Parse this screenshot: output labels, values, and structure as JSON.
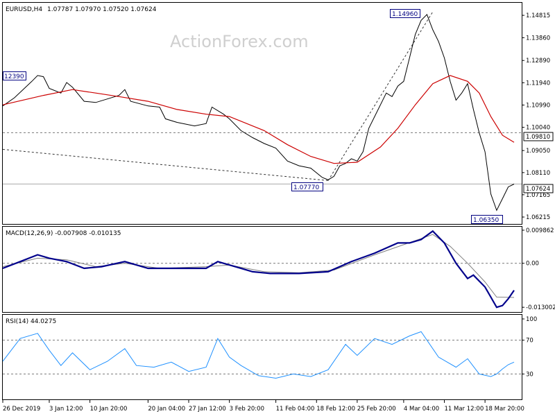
{
  "chart_data": {
    "type": "line",
    "symbol": "EURUSD,H4",
    "ohlc": "1.07787 1.07970 1.07520 1.07624",
    "watermark": "ActionForex.com",
    "colors": {
      "price": "#000000",
      "ma": "#cc0000",
      "macd": "#00008b",
      "signal": "#808080",
      "rsi": "#1e90ff",
      "reference": "#777777",
      "trendline": "#333333"
    },
    "price": {
      "ylim": [
        1.0592,
        1.1535
      ],
      "ticks": [
        "1.14815",
        "1.13860",
        "1.12890",
        "1.11940",
        "1.10990",
        "1.10040",
        "1.09050",
        "1.08110",
        "1.07165",
        "1.06215"
      ],
      "current": "1.07624",
      "level": "1.09810",
      "labels": [
        "12390",
        "1.14960",
        "1.07770",
        "1.06350"
      ],
      "series": [
        {
          "date": "2019-12-26",
          "value": 1.1095
        },
        {
          "date": "2019-12-28",
          "value": 1.113
        },
        {
          "date": "2019-12-31",
          "value": 1.12
        },
        {
          "date": "2020-01-01",
          "value": 1.1225
        },
        {
          "date": "2020-01-02",
          "value": 1.122
        },
        {
          "date": "2020-01-03",
          "value": 1.117
        },
        {
          "date": "2020-01-05",
          "value": 1.115
        },
        {
          "date": "2020-01-06",
          "value": 1.1195
        },
        {
          "date": "2020-01-07",
          "value": 1.1175
        },
        {
          "date": "2020-01-09",
          "value": 1.1115
        },
        {
          "date": "2020-01-11",
          "value": 1.111
        },
        {
          "date": "2020-01-13",
          "value": 1.1125
        },
        {
          "date": "2020-01-15",
          "value": 1.114
        },
        {
          "date": "2020-01-16",
          "value": 1.1165
        },
        {
          "date": "2020-01-17",
          "value": 1.1115
        },
        {
          "date": "2020-01-20",
          "value": 1.1095
        },
        {
          "date": "2020-01-22",
          "value": 1.109
        },
        {
          "date": "2020-01-23",
          "value": 1.104
        },
        {
          "date": "2020-01-25",
          "value": 1.1025
        },
        {
          "date": "2020-01-28",
          "value": 1.101
        },
        {
          "date": "2020-01-30",
          "value": 1.102
        },
        {
          "date": "2020-01-31",
          "value": 1.109
        },
        {
          "date": "2020-02-02",
          "value": 1.106
        },
        {
          "date": "2020-02-03",
          "value": 1.104
        },
        {
          "date": "2020-02-05",
          "value": 1.099
        },
        {
          "date": "2020-02-07",
          "value": 1.096
        },
        {
          "date": "2020-02-09",
          "value": 1.0935
        },
        {
          "date": "2020-02-11",
          "value": 1.0915
        },
        {
          "date": "2020-02-13",
          "value": 1.086
        },
        {
          "date": "2020-02-15",
          "value": 1.084
        },
        {
          "date": "2020-02-17",
          "value": 1.083
        },
        {
          "date": "2020-02-19",
          "value": 1.079
        },
        {
          "date": "2020-02-20",
          "value": 1.078
        },
        {
          "date": "2020-02-21",
          "value": 1.0795
        },
        {
          "date": "2020-02-22",
          "value": 1.084
        },
        {
          "date": "2020-02-23",
          "value": 1.085
        },
        {
          "date": "2020-02-24",
          "value": 1.087
        },
        {
          "date": "2020-02-25",
          "value": 1.086
        },
        {
          "date": "2020-02-26",
          "value": 1.09
        },
        {
          "date": "2020-02-27",
          "value": 1.1
        },
        {
          "date": "2020-02-28",
          "value": 1.105
        },
        {
          "date": "2020-03-01",
          "value": 1.115
        },
        {
          "date": "2020-03-02",
          "value": 1.1135
        },
        {
          "date": "2020-03-03",
          "value": 1.118
        },
        {
          "date": "2020-03-04",
          "value": 1.12
        },
        {
          "date": "2020-03-05",
          "value": 1.13
        },
        {
          "date": "2020-03-06",
          "value": 1.14
        },
        {
          "date": "2020-03-07",
          "value": 1.146
        },
        {
          "date": "2020-03-08",
          "value": 1.1485
        },
        {
          "date": "2020-03-09",
          "value": 1.142
        },
        {
          "date": "2020-03-10",
          "value": 1.137
        },
        {
          "date": "2020-03-11",
          "value": 1.13
        },
        {
          "date": "2020-03-12",
          "value": 1.12
        },
        {
          "date": "2020-03-13",
          "value": 1.112
        },
        {
          "date": "2020-03-14",
          "value": 1.115
        },
        {
          "date": "2020-03-15",
          "value": 1.119
        },
        {
          "date": "2020-03-16",
          "value": 1.108
        },
        {
          "date": "2020-03-17",
          "value": 1.098
        },
        {
          "date": "2020-03-18",
          "value": 1.09
        },
        {
          "date": "2020-03-19",
          "value": 1.072
        },
        {
          "date": "2020-03-20",
          "value": 1.065
        },
        {
          "date": "2020-03-21",
          "value": 1.07
        },
        {
          "date": "2020-03-22",
          "value": 1.075
        },
        {
          "date": "2020-03-23",
          "value": 1.0762
        }
      ],
      "ma": [
        {
          "date": "2019-12-26",
          "value": 1.11
        },
        {
          "date": "2020-01-02",
          "value": 1.114
        },
        {
          "date": "2020-01-07",
          "value": 1.1165
        },
        {
          "date": "2020-01-11",
          "value": 1.115
        },
        {
          "date": "2020-01-15",
          "value": 1.1135
        },
        {
          "date": "2020-01-20",
          "value": 1.1115
        },
        {
          "date": "2020-01-25",
          "value": 1.108
        },
        {
          "date": "2020-01-30",
          "value": 1.106
        },
        {
          "date": "2020-02-03",
          "value": 1.105
        },
        {
          "date": "2020-02-09",
          "value": 1.099
        },
        {
          "date": "2020-02-13",
          "value": 1.093
        },
        {
          "date": "2020-02-17",
          "value": 1.088
        },
        {
          "date": "2020-02-21",
          "value": 1.085
        },
        {
          "date": "2020-02-25",
          "value": 1.0855
        },
        {
          "date": "2020-02-29",
          "value": 1.092
        },
        {
          "date": "2020-03-03",
          "value": 1.1
        },
        {
          "date": "2020-03-06",
          "value": 1.11
        },
        {
          "date": "2020-03-09",
          "value": 1.119
        },
        {
          "date": "2020-03-12",
          "value": 1.1225
        },
        {
          "date": "2020-03-15",
          "value": 1.12
        },
        {
          "date": "2020-03-17",
          "value": 1.115
        },
        {
          "date": "2020-03-19",
          "value": 1.105
        },
        {
          "date": "2020-03-21",
          "value": 1.097
        },
        {
          "date": "2020-03-23",
          "value": 1.094
        }
      ],
      "trendlines": [
        {
          "from": {
            "date": "2019-12-26",
            "value": 1.091
          },
          "to": {
            "date": "2020-02-20",
            "value": 1.0777
          }
        },
        {
          "from": {
            "date": "2020-02-20",
            "value": 1.0777
          },
          "to": {
            "date": "2020-03-09",
            "value": 1.1496
          }
        }
      ]
    },
    "macd": {
      "label": "MACD(12,26,9) -0.007908 -0.010135",
      "ylim": [
        -0.0144,
        0.0108
      ],
      "ticks": [
        "0.009862",
        "0.00",
        "-0.013002"
      ],
      "zero": 0,
      "main": [
        {
          "date": "2019-12-26",
          "value": -0.0015
        },
        {
          "date": "2019-12-29",
          "value": 0.0005
        },
        {
          "date": "2020-01-01",
          "value": 0.0025
        },
        {
          "date": "2020-01-03",
          "value": 0.0015
        },
        {
          "date": "2020-01-06",
          "value": 0.0005
        },
        {
          "date": "2020-01-09",
          "value": -0.0015
        },
        {
          "date": "2020-01-12",
          "value": -0.001
        },
        {
          "date": "2020-01-16",
          "value": 0.0005
        },
        {
          "date": "2020-01-20",
          "value": -0.0015
        },
        {
          "date": "2020-01-25",
          "value": -0.0015
        },
        {
          "date": "2020-01-30",
          "value": -0.0015
        },
        {
          "date": "2020-02-01",
          "value": 0.0005
        },
        {
          "date": "2020-02-04",
          "value": -0.001
        },
        {
          "date": "2020-02-07",
          "value": -0.0025
        },
        {
          "date": "2020-02-10",
          "value": -0.003
        },
        {
          "date": "2020-02-15",
          "value": -0.003
        },
        {
          "date": "2020-02-20",
          "value": -0.0025
        },
        {
          "date": "2020-02-24",
          "value": 0.0005
        },
        {
          "date": "2020-02-28",
          "value": 0.003
        },
        {
          "date": "2020-03-03",
          "value": 0.006
        },
        {
          "date": "2020-03-05",
          "value": 0.006
        },
        {
          "date": "2020-03-07",
          "value": 0.007
        },
        {
          "date": "2020-03-09",
          "value": 0.0095
        },
        {
          "date": "2020-03-11",
          "value": 0.006
        },
        {
          "date": "2020-03-13",
          "value": 0.0
        },
        {
          "date": "2020-03-15",
          "value": -0.0045
        },
        {
          "date": "2020-03-16",
          "value": -0.0035
        },
        {
          "date": "2020-03-18",
          "value": -0.007
        },
        {
          "date": "2020-03-19",
          "value": -0.01
        },
        {
          "date": "2020-03-20",
          "value": -0.013
        },
        {
          "date": "2020-03-21",
          "value": -0.0125
        },
        {
          "date": "2020-03-22",
          "value": -0.0105
        },
        {
          "date": "2020-03-23",
          "value": -0.008
        }
      ],
      "signal": [
        {
          "date": "2019-12-26",
          "value": -0.001
        },
        {
          "date": "2020-01-01",
          "value": 0.0015
        },
        {
          "date": "2020-01-06",
          "value": 0.001
        },
        {
          "date": "2020-01-11",
          "value": -0.001
        },
        {
          "date": "2020-01-16",
          "value": 0.0
        },
        {
          "date": "2020-01-22",
          "value": -0.0015
        },
        {
          "date": "2020-01-30",
          "value": -0.001
        },
        {
          "date": "2020-02-03",
          "value": -0.0005
        },
        {
          "date": "2020-02-09",
          "value": -0.0025
        },
        {
          "date": "2020-02-15",
          "value": -0.0028
        },
        {
          "date": "2020-02-21",
          "value": -0.002
        },
        {
          "date": "2020-02-28",
          "value": 0.0025
        },
        {
          "date": "2020-03-04",
          "value": 0.0055
        },
        {
          "date": "2020-03-09",
          "value": 0.0085
        },
        {
          "date": "2020-03-12",
          "value": 0.005
        },
        {
          "date": "2020-03-15",
          "value": 0.0
        },
        {
          "date": "2020-03-18",
          "value": -0.0055
        },
        {
          "date": "2020-03-20",
          "value": -0.01
        },
        {
          "date": "2020-03-23",
          "value": -0.0101
        }
      ]
    },
    "rsi": {
      "label": "RSI(14) 44.0275",
      "ylim": [
        0,
        100
      ],
      "ticks": [
        "100",
        "70",
        "30"
      ],
      "levels": [
        70,
        30
      ],
      "series": [
        {
          "date": "2019-12-26",
          "value": 45
        },
        {
          "date": "2019-12-29",
          "value": 72
        },
        {
          "date": "2020-01-01",
          "value": 78
        },
        {
          "date": "2020-01-03",
          "value": 58
        },
        {
          "date": "2020-01-05",
          "value": 40
        },
        {
          "date": "2020-01-07",
          "value": 55
        },
        {
          "date": "2020-01-10",
          "value": 35
        },
        {
          "date": "2020-01-13",
          "value": 45
        },
        {
          "date": "2020-01-16",
          "value": 60
        },
        {
          "date": "2020-01-18",
          "value": 40
        },
        {
          "date": "2020-01-21",
          "value": 38
        },
        {
          "date": "2020-01-24",
          "value": 44
        },
        {
          "date": "2020-01-27",
          "value": 33
        },
        {
          "date": "2020-01-30",
          "value": 38
        },
        {
          "date": "2020-02-01",
          "value": 72
        },
        {
          "date": "2020-02-03",
          "value": 50
        },
        {
          "date": "2020-02-05",
          "value": 40
        },
        {
          "date": "2020-02-08",
          "value": 28
        },
        {
          "date": "2020-02-11",
          "value": 25
        },
        {
          "date": "2020-02-14",
          "value": 30
        },
        {
          "date": "2020-02-17",
          "value": 27
        },
        {
          "date": "2020-02-20",
          "value": 35
        },
        {
          "date": "2020-02-23",
          "value": 65
        },
        {
          "date": "2020-02-25",
          "value": 52
        },
        {
          "date": "2020-02-28",
          "value": 72
        },
        {
          "date": "2020-03-02",
          "value": 65
        },
        {
          "date": "2020-03-05",
          "value": 75
        },
        {
          "date": "2020-03-07",
          "value": 80
        },
        {
          "date": "2020-03-10",
          "value": 50
        },
        {
          "date": "2020-03-13",
          "value": 38
        },
        {
          "date": "2020-03-15",
          "value": 48
        },
        {
          "date": "2020-03-17",
          "value": 30
        },
        {
          "date": "2020-03-19",
          "value": 27
        },
        {
          "date": "2020-03-20",
          "value": 30
        },
        {
          "date": "2020-03-21",
          "value": 36
        },
        {
          "date": "2020-03-22",
          "value": 41
        },
        {
          "date": "2020-03-23",
          "value": 44
        }
      ]
    },
    "x_axis": {
      "range": [
        "2019-12-26",
        "2020-03-23"
      ],
      "ticks": [
        {
          "date": "2019-12-26",
          "label": "26 Dec 2019"
        },
        {
          "date": "2020-01-03",
          "label": "3 Jan 12:00"
        },
        {
          "date": "2020-01-10",
          "label": "10 Jan 20:00"
        },
        {
          "date": "2020-01-20",
          "label": "20 Jan 04:00"
        },
        {
          "date": "2020-01-27",
          "label": "27 Jan 12:00"
        },
        {
          "date": "2020-02-03",
          "label": "3 Feb 20:00"
        },
        {
          "date": "2020-02-11",
          "label": "11 Feb 04:00"
        },
        {
          "date": "2020-02-18",
          "label": "18 Feb 12:00"
        },
        {
          "date": "2020-02-25",
          "label": "25 Feb 20:00"
        },
        {
          "date": "2020-03-04",
          "label": "4 Mar 04:00"
        },
        {
          "date": "2020-03-11",
          "label": "11 Mar 12:00"
        },
        {
          "date": "2020-03-18",
          "label": "18 Mar 20:00"
        }
      ]
    }
  }
}
